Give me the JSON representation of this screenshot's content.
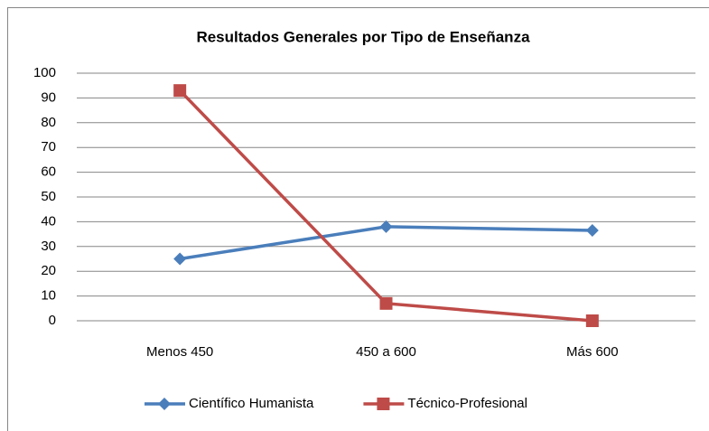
{
  "chart_data": {
    "type": "line",
    "title": "Resultados Generales por Tipo de Enseñanza",
    "categories": [
      "Menos 450",
      "450 a  600",
      "Más 600"
    ],
    "series": [
      {
        "name": "Científico Humanista",
        "color": "#4a7ebb",
        "marker": "diamond",
        "values": [
          25,
          38,
          36.5
        ]
      },
      {
        "name": "Técnico-Profesional",
        "color": "#be4b48",
        "marker": "square",
        "values": [
          93,
          7,
          0
        ]
      }
    ],
    "ylim": [
      0,
      100
    ],
    "yticks": [
      0,
      10,
      20,
      30,
      40,
      50,
      60,
      70,
      80,
      90,
      100
    ],
    "grid": true,
    "legend": "bottom"
  }
}
